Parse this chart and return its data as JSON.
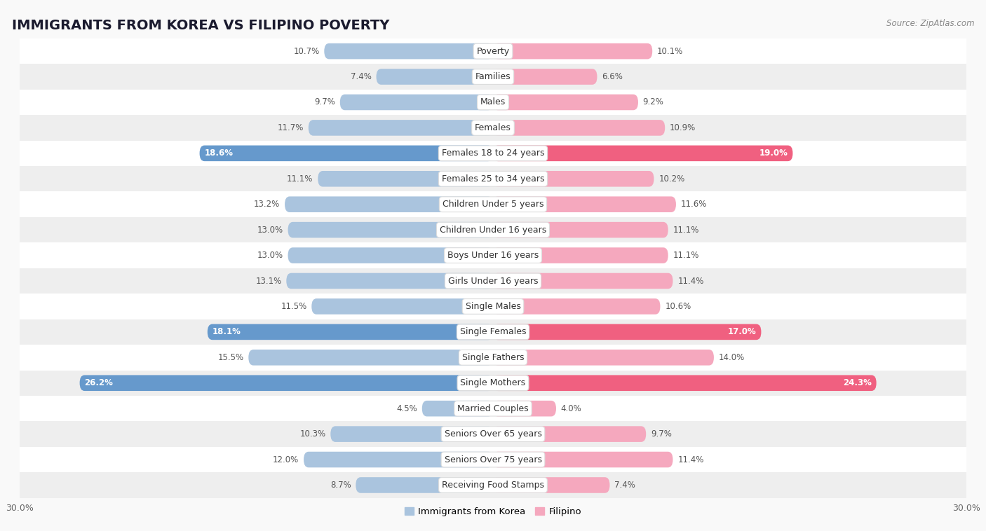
{
  "title": "IMMIGRANTS FROM KOREA VS FILIPINO POVERTY",
  "source": "Source: ZipAtlas.com",
  "categories": [
    "Poverty",
    "Families",
    "Males",
    "Females",
    "Females 18 to 24 years",
    "Females 25 to 34 years",
    "Children Under 5 years",
    "Children Under 16 years",
    "Boys Under 16 years",
    "Girls Under 16 years",
    "Single Males",
    "Single Females",
    "Single Fathers",
    "Single Mothers",
    "Married Couples",
    "Seniors Over 65 years",
    "Seniors Over 75 years",
    "Receiving Food Stamps"
  ],
  "korea_values": [
    10.7,
    7.4,
    9.7,
    11.7,
    18.6,
    11.1,
    13.2,
    13.0,
    13.0,
    13.1,
    11.5,
    18.1,
    15.5,
    26.2,
    4.5,
    10.3,
    12.0,
    8.7
  ],
  "filipino_values": [
    10.1,
    6.6,
    9.2,
    10.9,
    19.0,
    10.2,
    11.6,
    11.1,
    11.1,
    11.4,
    10.6,
    17.0,
    14.0,
    24.3,
    4.0,
    9.7,
    11.4,
    7.4
  ],
  "korea_color": "#aac4de",
  "filipino_color": "#f5a8be",
  "korea_highlight_color": "#6699cc",
  "filipino_highlight_color": "#f06080",
  "highlight_rows": [
    4,
    11,
    13
  ],
  "xlim": 30.0,
  "bar_height": 0.62,
  "bg_color": "#f9f9f9",
  "row_colors": [
    "#ffffff",
    "#eeeeee"
  ],
  "legend_labels": [
    "Immigrants from Korea",
    "Filipino"
  ],
  "title_fontsize": 14,
  "label_fontsize": 9,
  "value_fontsize": 8.5,
  "axis_label_fontsize": 9
}
